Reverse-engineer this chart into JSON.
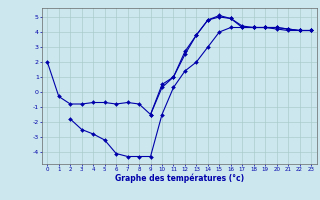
{
  "xlabel": "Graphe des températures (°c)",
  "background_color": "#cce8ee",
  "line_color": "#0000aa",
  "grid_color": "#aacccc",
  "xlim": [
    -0.5,
    23.5
  ],
  "ylim": [
    -4.8,
    5.6
  ],
  "xticks": [
    0,
    1,
    2,
    3,
    4,
    5,
    6,
    7,
    8,
    9,
    10,
    11,
    12,
    13,
    14,
    15,
    16,
    17,
    18,
    19,
    20,
    21,
    22,
    23
  ],
  "yticks": [
    -4,
    -3,
    -2,
    -1,
    0,
    1,
    2,
    3,
    4,
    5
  ],
  "line1_x": [
    0,
    1,
    2,
    3,
    4,
    5,
    6,
    7,
    8,
    9,
    10,
    11,
    12,
    13,
    14,
    15,
    16,
    17,
    18,
    19,
    20,
    21,
    22,
    23
  ],
  "line1_y": [
    2.0,
    -0.3,
    -0.8,
    -0.8,
    -0.7,
    -0.7,
    -0.8,
    -0.7,
    -0.8,
    -1.5,
    0.3,
    1.0,
    2.7,
    3.8,
    4.8,
    5.0,
    4.9,
    4.3,
    4.3,
    4.3,
    4.3,
    4.2,
    4.1,
    4.1
  ],
  "line2_x": [
    2,
    3,
    4,
    5,
    6,
    7,
    8,
    9,
    10,
    11,
    12,
    13,
    14,
    15,
    16,
    17,
    18,
    19,
    20,
    21,
    22,
    23
  ],
  "line2_y": [
    -1.8,
    -2.5,
    -2.8,
    -3.2,
    -4.1,
    -4.3,
    -4.3,
    -4.3,
    -1.5,
    0.3,
    1.4,
    2.0,
    3.0,
    4.0,
    4.3,
    4.3,
    4.3,
    4.3,
    4.2,
    4.1,
    4.1,
    4.1
  ],
  "line3_x": [
    9,
    10,
    11,
    12,
    13,
    14,
    15,
    16,
    17,
    18,
    19,
    20,
    21,
    22,
    23
  ],
  "line3_y": [
    -1.5,
    0.5,
    1.0,
    2.5,
    3.8,
    4.8,
    5.1,
    4.9,
    4.4,
    4.3,
    4.3,
    4.3,
    4.2,
    4.1,
    4.1
  ]
}
